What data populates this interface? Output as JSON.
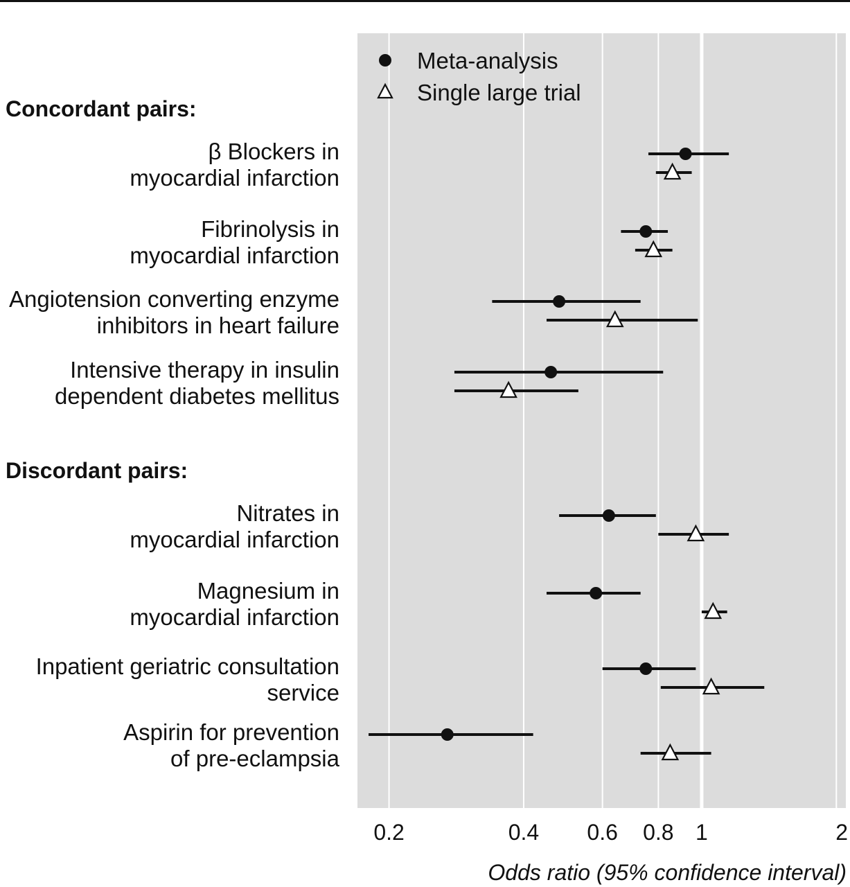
{
  "chart_data": {
    "type": "scatter",
    "subtype": "forest-plot",
    "xlabel": "Odds ratio (95% confidence interval)",
    "x_scale": "log",
    "xlim": [
      0.17,
      2.1
    ],
    "x_ticks": [
      {
        "value": 0.2,
        "label": "0.2"
      },
      {
        "value": 0.4,
        "label": "0.4"
      },
      {
        "value": 0.6,
        "label": "0.6"
      },
      {
        "value": 0.8,
        "label": "0.8"
      },
      {
        "value": 1,
        "label": "1"
      },
      {
        "value": 2,
        "label": "2"
      }
    ],
    "reference_line": 1,
    "grid": "vertical lines at ticks",
    "legend": {
      "placement": "top-left",
      "entries": [
        {
          "label": "Meta-analysis",
          "marker": "filled-circle"
        },
        {
          "label": "Single large trial",
          "marker": "open-triangle"
        }
      ]
    },
    "groups": [
      {
        "label": "Concordant pairs:",
        "rows": [
          {
            "label_lines": [
              "β Blockers in",
              "myocardial infarction"
            ],
            "meta": {
              "est": 0.92,
              "low": 0.76,
              "high": 1.15
            },
            "trial": {
              "est": 0.86,
              "low": 0.79,
              "high": 0.95
            }
          },
          {
            "label_lines": [
              "Fibrinolysis in",
              "myocardial infarction"
            ],
            "meta": {
              "est": 0.75,
              "low": 0.66,
              "high": 0.84
            },
            "trial": {
              "est": 0.78,
              "low": 0.71,
              "high": 0.86
            }
          },
          {
            "label_lines": [
              "Angiotension converting enzyme",
              "inhibitors in heart failure"
            ],
            "meta": {
              "est": 0.48,
              "low": 0.34,
              "high": 0.73
            },
            "trial": {
              "est": 0.64,
              "low": 0.45,
              "high": 0.98
            }
          },
          {
            "label_lines": [
              "Intensive therapy in insulin",
              "dependent diabetes mellitus"
            ],
            "meta": {
              "est": 0.46,
              "low": 0.28,
              "high": 0.82
            },
            "trial": {
              "est": 0.37,
              "low": 0.28,
              "high": 0.53
            }
          }
        ]
      },
      {
        "label": "Discordant pairs:",
        "rows": [
          {
            "label_lines": [
              "Nitrates in",
              "myocardial infarction"
            ],
            "meta": {
              "est": 0.62,
              "low": 0.48,
              "high": 0.79
            },
            "trial": {
              "est": 0.97,
              "low": 0.8,
              "high": 1.15
            }
          },
          {
            "label_lines": [
              "Magnesium in",
              "myocardial infarction"
            ],
            "meta": {
              "est": 0.58,
              "low": 0.45,
              "high": 0.73
            },
            "trial": {
              "est": 1.06,
              "low": 1.0,
              "high": 1.14
            }
          },
          {
            "label_lines": [
              "Inpatient geriatric consultation",
              "service"
            ],
            "meta": {
              "est": 0.75,
              "low": 0.6,
              "high": 0.97
            },
            "trial": {
              "est": 1.05,
              "low": 0.81,
              "high": 1.38
            }
          },
          {
            "label_lines": [
              "Aspirin for prevention",
              "of pre-eclampsia"
            ],
            "meta": {
              "est": 0.27,
              "low": 0.18,
              "high": 0.42
            },
            "trial": {
              "est": 0.85,
              "low": 0.73,
              "high": 1.05
            }
          }
        ]
      }
    ]
  }
}
